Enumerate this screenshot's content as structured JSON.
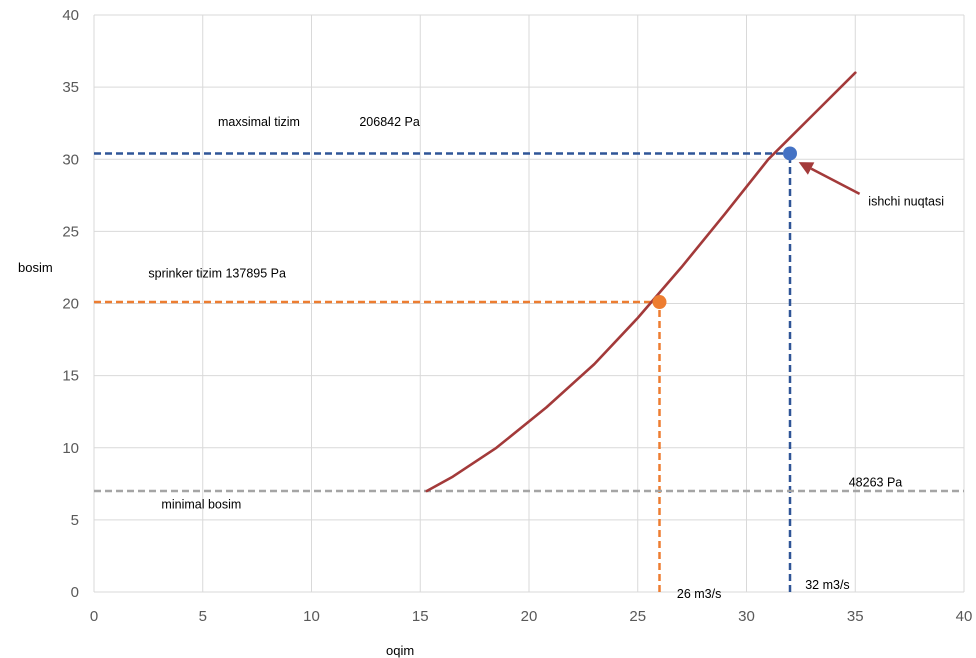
{
  "chart_data": {
    "type": "line",
    "title": "",
    "xlabel": "oqim",
    "ylabel": "bosim",
    "xlim": [
      0,
      40
    ],
    "ylim": [
      0,
      40
    ],
    "x_ticks": [
      0,
      5,
      10,
      15,
      20,
      25,
      30,
      35,
      40
    ],
    "y_ticks": [
      0,
      5,
      10,
      15,
      20,
      25,
      30,
      35,
      40
    ],
    "grid": true,
    "series": [
      {
        "color": "#a33a3a",
        "x": [
          15.3,
          16.5,
          18.5,
          20.8,
          23,
          25,
          27,
          29,
          31,
          33,
          35
        ],
        "y": [
          7,
          8,
          10,
          12.8,
          15.8,
          19,
          22.5,
          26.2,
          30,
          33,
          36
        ]
      }
    ],
    "points": [
      {
        "x": 26,
        "y": 20.1,
        "color": "#ed7d31"
      },
      {
        "x": 32,
        "y": 30.4,
        "color": "#4472c4"
      }
    ],
    "reference_lines": [
      {
        "orientation": "horizontal",
        "value": 30.4,
        "from": 0,
        "to": 32,
        "color": "#2f5597",
        "style": "dashed"
      },
      {
        "orientation": "vertical",
        "value": 32,
        "from": 0,
        "to": 30.4,
        "color": "#2f5597",
        "style": "dashed"
      },
      {
        "orientation": "horizontal",
        "value": 20.1,
        "from": 0,
        "to": 26,
        "color": "#ed7d31",
        "style": "dashed"
      },
      {
        "orientation": "vertical",
        "value": 26,
        "from": 0,
        "to": 20.1,
        "color": "#ed7d31",
        "style": "dashed"
      },
      {
        "orientation": "horizontal",
        "value": 7,
        "from": 0,
        "to": 40,
        "color": "#a5a5a5",
        "style": "dashed"
      }
    ],
    "annotations": [
      {
        "text": "maxsimal tizim",
        "x": 5.7,
        "y": 32.3
      },
      {
        "text": "206842 Pa",
        "x": 12.2,
        "y": 32.3
      },
      {
        "text": "sprinker tizim 137895 Pa",
        "x": 2.5,
        "y": 21.8
      },
      {
        "text": "minimal bosim",
        "x": 3.1,
        "y": 5.8
      },
      {
        "text": "48263 Pa",
        "x": 34.7,
        "y": 7.3
      },
      {
        "text": "26 m3/s",
        "x": 26.8,
        "y": -0.4
      },
      {
        "text": "32 m3/s",
        "x": 32.7,
        "y": 0.2
      },
      {
        "text": "ishchi nuqtasi",
        "x": 35.6,
        "y": 26.8
      }
    ],
    "arrow": {
      "from": [
        35.2,
        27.6
      ],
      "to": [
        32.4,
        29.8
      ],
      "color": "#a33a3a"
    }
  }
}
